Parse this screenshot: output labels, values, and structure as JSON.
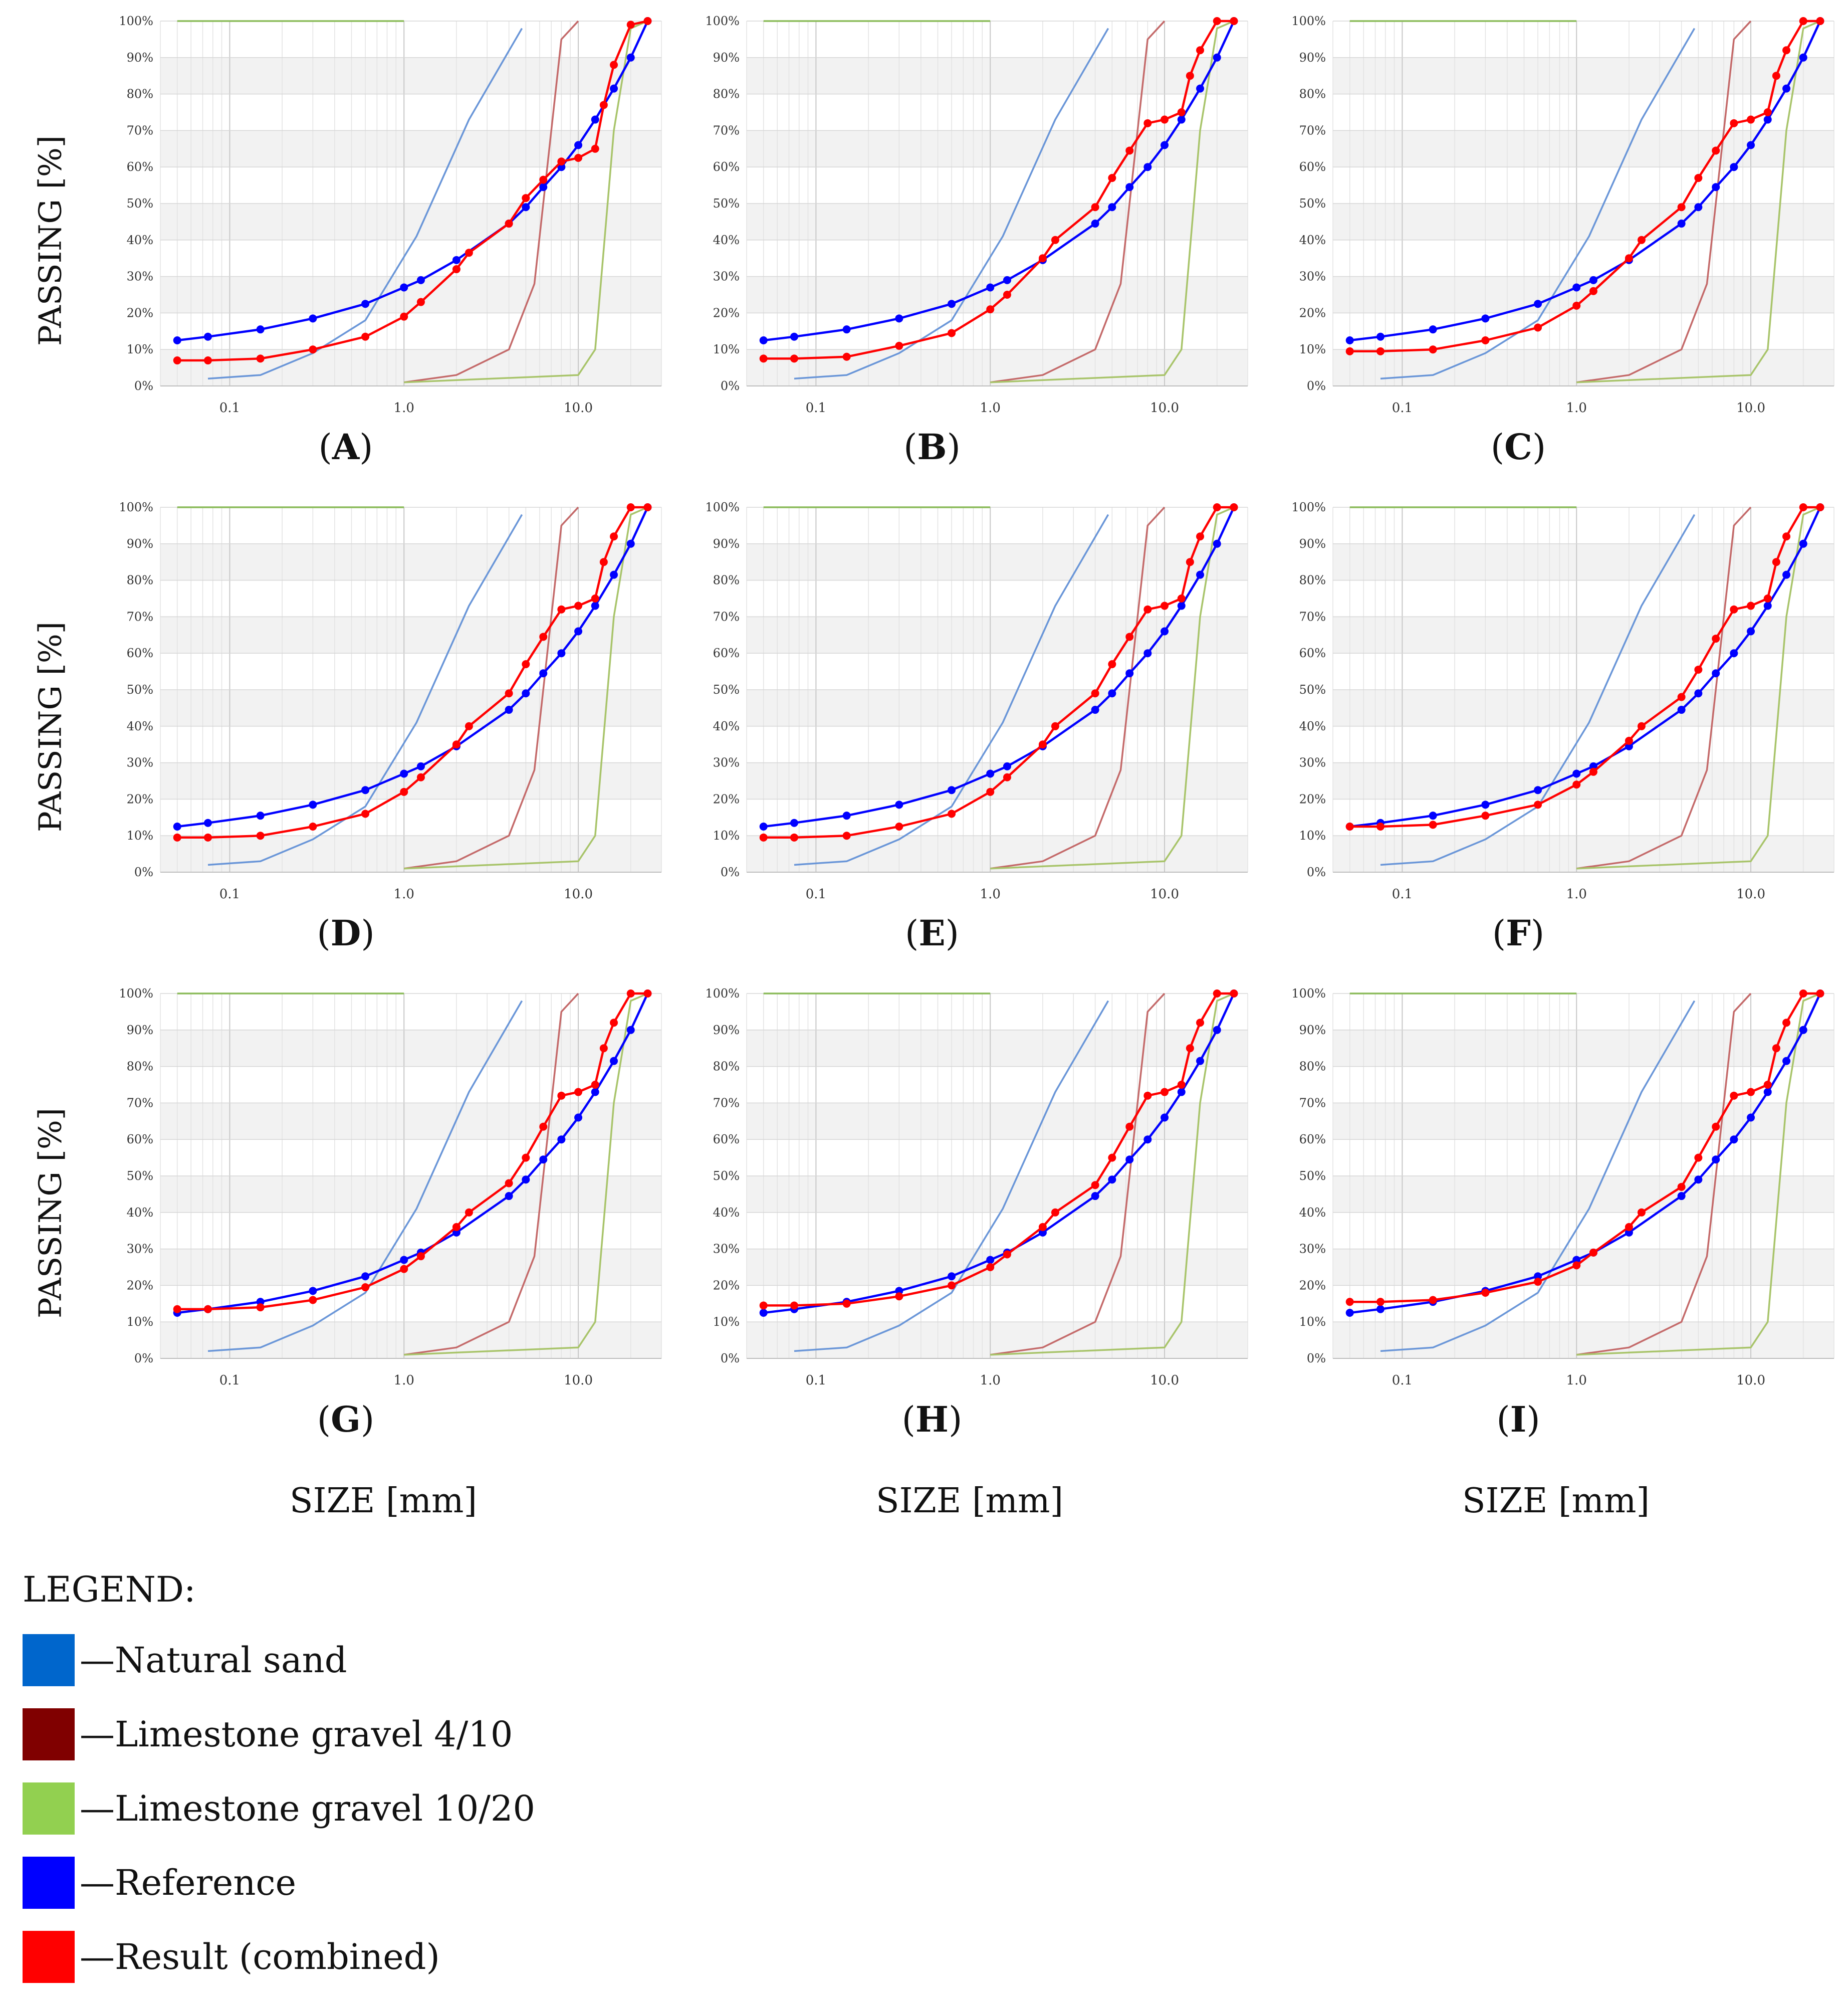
{
  "y_axis_label": "PASSING [%]",
  "x_axis_label": "SIZE [mm]",
  "legend": {
    "title": "LEGEND:",
    "items": [
      {
        "key": "natural_sand",
        "label": "—Natural sand",
        "color": "#0066cc"
      },
      {
        "key": "gravel_4_10",
        "label": "—Limestone gravel 4/10",
        "color": "#800000"
      },
      {
        "key": "gravel_10_20",
        "label": "—Limestone gravel 10/20",
        "color": "#92d050"
      },
      {
        "key": "reference",
        "label": "—Reference",
        "color": "#0000ff"
      },
      {
        "key": "result",
        "label": "—Result (combined)",
        "color": "#ff0000"
      }
    ]
  },
  "chart_data": {
    "type": "line",
    "x_scale": "log",
    "xlim": [
      0.04,
      30
    ],
    "ylim": [
      0,
      100
    ],
    "x_ticks": [
      "0.1",
      "1.0",
      "10.0"
    ],
    "y_ticks": [
      "0%",
      "10%",
      "20%",
      "30%",
      "40%",
      "50%",
      "60%",
      "70%",
      "80%",
      "90%",
      "100%"
    ],
    "common_series": [
      {
        "name": "Natural sand",
        "key": "natural_sand",
        "color": "#6a96d8",
        "x": [
          0.075,
          0.15,
          0.3,
          0.6,
          1.18,
          2.36,
          4.75
        ],
        "y": [
          2,
          3,
          9,
          18,
          41,
          73,
          98
        ]
      },
      {
        "name": "Limestone gravel 4/10",
        "key": "gravel_4_10",
        "color": "#c46a6a",
        "x": [
          1.0,
          2.0,
          4.0,
          5.6,
          8.0,
          10.0
        ],
        "y": [
          1,
          3,
          10,
          28,
          95,
          100
        ]
      },
      {
        "name": "Limestone gravel 10/20",
        "key": "gravel_10_20",
        "color": "#a8c46a",
        "x": [
          1.0,
          10.0,
          12.5,
          16.0,
          20.0,
          25.0
        ],
        "y": [
          1,
          3,
          10,
          70,
          98,
          100
        ]
      },
      {
        "name": "Limestone gravel 10/20 (top)",
        "key": "gravel_10_20_top",
        "color": "#8bbb5a",
        "x": [
          0.05,
          1.0
        ],
        "y": [
          100,
          100
        ]
      }
    ],
    "reference": {
      "name": "Reference",
      "key": "reference",
      "color": "#0000ff",
      "x": [
        0.05,
        0.075,
        0.15,
        0.3,
        0.6,
        1.0,
        1.25,
        2.0,
        4.0,
        5.0,
        6.3,
        8.0,
        10.0,
        12.5,
        16.0,
        20.0,
        25.0
      ],
      "y": [
        12.5,
        13.5,
        15.5,
        18.5,
        22.5,
        27,
        29,
        34.5,
        44.5,
        49,
        54.5,
        60,
        66,
        73,
        81.5,
        90,
        100
      ]
    },
    "panels": [
      {
        "label": "A",
        "result": {
          "x": [
            0.05,
            0.075,
            0.15,
            0.3,
            0.6,
            1.0,
            1.25,
            2.0,
            2.36,
            4.0,
            5.0,
            6.3,
            8.0,
            10.0,
            12.5,
            14.0,
            16.0,
            20.0,
            25.0
          ],
          "y": [
            7,
            7,
            7.5,
            10,
            13.5,
            19,
            23,
            32,
            36.5,
            44.5,
            51.5,
            56.5,
            61.5,
            62.5,
            65,
            77,
            88,
            99,
            100
          ]
        }
      },
      {
        "label": "B",
        "result": {
          "x": [
            0.05,
            0.075,
            0.15,
            0.3,
            0.6,
            1.0,
            1.25,
            2.0,
            2.36,
            4.0,
            5.0,
            6.3,
            8.0,
            10.0,
            12.5,
            14.0,
            16.0,
            20.0,
            25.0
          ],
          "y": [
            7.5,
            7.5,
            8,
            11,
            14.5,
            21,
            25,
            35,
            40,
            49,
            57,
            64.5,
            72,
            73,
            75,
            85,
            92,
            100,
            100
          ]
        }
      },
      {
        "label": "C",
        "result": {
          "x": [
            0.05,
            0.075,
            0.15,
            0.3,
            0.6,
            1.0,
            1.25,
            2.0,
            2.36,
            4.0,
            5.0,
            6.3,
            8.0,
            10.0,
            12.5,
            14.0,
            16.0,
            20.0,
            25.0
          ],
          "y": [
            9.5,
            9.5,
            10,
            12.5,
            16,
            22,
            26,
            35,
            40,
            49,
            57,
            64.5,
            72,
            73,
            75,
            85,
            92,
            100,
            100
          ]
        }
      },
      {
        "label": "D",
        "result": {
          "x": [
            0.05,
            0.075,
            0.15,
            0.3,
            0.6,
            1.0,
            1.25,
            2.0,
            2.36,
            4.0,
            5.0,
            6.3,
            8.0,
            10.0,
            12.5,
            14.0,
            16.0,
            20.0,
            25.0
          ],
          "y": [
            9.5,
            9.5,
            10,
            12.5,
            16,
            22,
            26,
            35,
            40,
            49,
            57,
            64.5,
            72,
            73,
            75,
            85,
            92,
            100,
            100
          ]
        }
      },
      {
        "label": "E",
        "result": {
          "x": [
            0.05,
            0.075,
            0.15,
            0.3,
            0.6,
            1.0,
            1.25,
            2.0,
            2.36,
            4.0,
            5.0,
            6.3,
            8.0,
            10.0,
            12.5,
            14.0,
            16.0,
            20.0,
            25.0
          ],
          "y": [
            9.5,
            9.5,
            10,
            12.5,
            16,
            22,
            26,
            35,
            40,
            49,
            57,
            64.5,
            72,
            73,
            75,
            85,
            92,
            100,
            100
          ]
        }
      },
      {
        "label": "F",
        "result": {
          "x": [
            0.05,
            0.075,
            0.15,
            0.3,
            0.6,
            1.0,
            1.25,
            2.0,
            2.36,
            4.0,
            5.0,
            6.3,
            8.0,
            10.0,
            12.5,
            14.0,
            16.0,
            20.0,
            25.0
          ],
          "y": [
            12.5,
            12.5,
            13,
            15.5,
            18.5,
            24,
            27.5,
            36,
            40,
            48,
            55.5,
            64,
            72,
            73,
            75,
            85,
            92,
            100,
            100
          ]
        }
      },
      {
        "label": "G",
        "result": {
          "x": [
            0.05,
            0.075,
            0.15,
            0.3,
            0.6,
            1.0,
            1.25,
            2.0,
            2.36,
            4.0,
            5.0,
            6.3,
            8.0,
            10.0,
            12.5,
            14.0,
            16.0,
            20.0,
            25.0
          ],
          "y": [
            13.5,
            13.5,
            14,
            16,
            19.5,
            24.5,
            28,
            36,
            40,
            48,
            55,
            63.5,
            72,
            73,
            75,
            85,
            92,
            100,
            100
          ]
        }
      },
      {
        "label": "H",
        "result": {
          "x": [
            0.05,
            0.075,
            0.15,
            0.3,
            0.6,
            1.0,
            1.25,
            2.0,
            2.36,
            4.0,
            5.0,
            6.3,
            8.0,
            10.0,
            12.5,
            14.0,
            16.0,
            20.0,
            25.0
          ],
          "y": [
            14.5,
            14.5,
            15,
            17,
            20,
            25,
            28.5,
            36,
            40,
            47.5,
            55,
            63.5,
            72,
            73,
            75,
            85,
            92,
            100,
            100
          ]
        }
      },
      {
        "label": "I",
        "result": {
          "x": [
            0.05,
            0.075,
            0.15,
            0.3,
            0.6,
            1.0,
            1.25,
            2.0,
            2.36,
            4.0,
            5.0,
            6.3,
            8.0,
            10.0,
            12.5,
            14.0,
            16.0,
            20.0,
            25.0
          ],
          "y": [
            15.5,
            15.5,
            16,
            18,
            21,
            25.5,
            29,
            36,
            40,
            47,
            55,
            63.5,
            72,
            73,
            75,
            85,
            92,
            100,
            100
          ]
        }
      }
    ]
  }
}
